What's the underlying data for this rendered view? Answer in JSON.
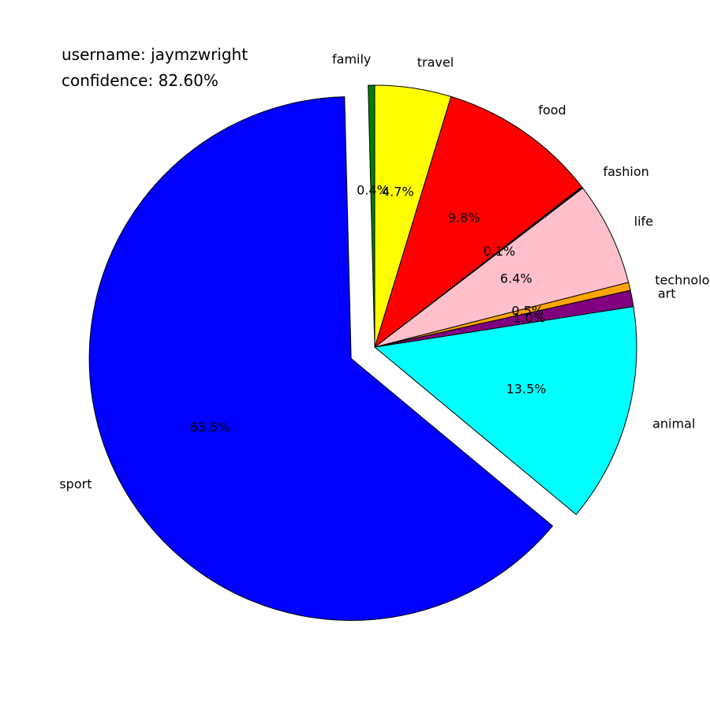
{
  "header": {
    "username_label": "username:",
    "username": "jaymzwright",
    "confidence_label": "confidence:",
    "confidence": "82.60%"
  },
  "chart_data": {
    "type": "pie",
    "title": "",
    "start_angle_deg": 90,
    "direction": "counterclockwise",
    "slices": [
      {
        "label": "family",
        "value": 0.4,
        "pct_label": "0.4%",
        "color": "#008000",
        "explode": false
      },
      {
        "label": "sport",
        "value": 63.5,
        "pct_label": "63.5%",
        "color": "#0000ff",
        "explode": true
      },
      {
        "label": "animal",
        "value": 13.5,
        "pct_label": "13.5%",
        "color": "#00ffff",
        "explode": false
      },
      {
        "label": "art",
        "value": 1.0,
        "pct_label": "1.0%",
        "color": "#800080",
        "explode": false
      },
      {
        "label": "technology",
        "value": 0.5,
        "pct_label": "0.5%",
        "color": "#ffa500",
        "explode": false
      },
      {
        "label": "life",
        "value": 6.4,
        "pct_label": "6.4%",
        "color": "#ffc0cb",
        "explode": false
      },
      {
        "label": "fashion",
        "value": 0.1,
        "pct_label": "0.1%",
        "color": "#000000",
        "explode": false
      },
      {
        "label": "food",
        "value": 9.8,
        "pct_label": "9.8%",
        "color": "#ff0000",
        "explode": false
      },
      {
        "label": "travel",
        "value": 4.7,
        "pct_label": "4.7%",
        "color": "#ffff00",
        "explode": false
      }
    ]
  }
}
